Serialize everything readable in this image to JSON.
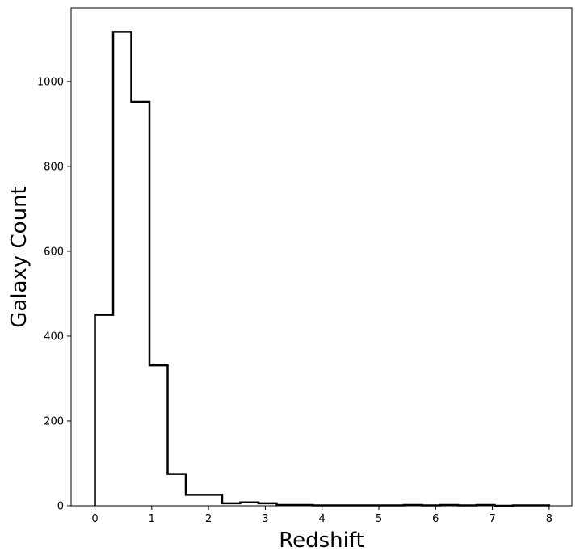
{
  "chart_data": {
    "type": "histogram",
    "xlabel": "Redshift",
    "ylabel": "Galaxy Count",
    "xlim": [
      -0.42,
      8.4
    ],
    "ylim": [
      0,
      1173
    ],
    "x_ticks": [
      0,
      1,
      2,
      3,
      4,
      5,
      6,
      7,
      8
    ],
    "y_ticks": [
      0,
      200,
      400,
      600,
      800,
      1000
    ],
    "x_tick_labels": [
      "0",
      "1",
      "2",
      "3",
      "4",
      "5",
      "6",
      "7",
      "8"
    ],
    "y_tick_labels": [
      "0",
      "200",
      "400",
      "600",
      "800",
      "1000"
    ],
    "bin_edges": [
      0,
      0.32,
      0.64,
      0.96,
      1.28,
      1.6,
      1.92,
      2.24,
      2.56,
      2.88,
      3.2,
      3.52,
      3.84,
      4.16,
      4.48,
      4.8,
      5.12,
      5.44,
      5.76,
      6.08,
      6.4,
      6.72,
      7.04,
      7.36,
      7.68,
      8.0
    ],
    "counts": [
      450,
      1117,
      952,
      331,
      75,
      26,
      26,
      6,
      8,
      6,
      2,
      2,
      1,
      1,
      1,
      1,
      1,
      2,
      1,
      2,
      1,
      2,
      0,
      1,
      1
    ],
    "histtype": "step",
    "line_color": "#000000",
    "grid": false
  }
}
